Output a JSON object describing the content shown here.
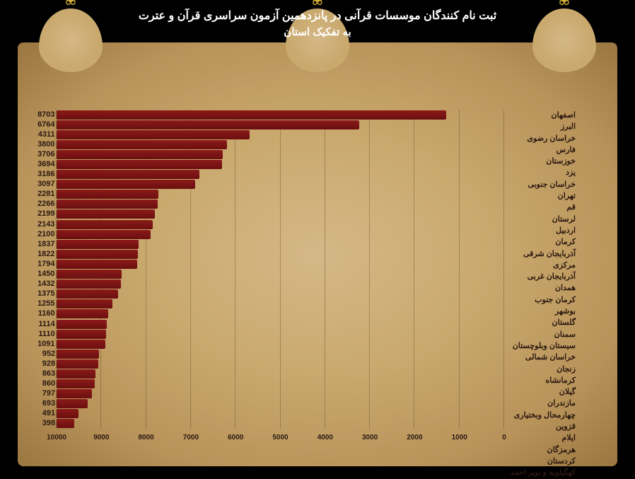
{
  "title": "ثبت نام کنندگان موسسات قرآنی در پانزدهمین آزمون سراسری قرآن و عترت",
  "subtitle": "به تفکیک استان",
  "chart": {
    "type": "bar",
    "xmax": 10000,
    "xtick_step": 1000,
    "bar_color_top": "#8b1a1a",
    "bar_color_bottom": "#6b0f0f",
    "grid_color": "rgba(90,60,30,0.35)",
    "text_color": "#2a1810",
    "background": "#c9a96e",
    "provinces": [
      {
        "name": "اصفهان",
        "value": 8703
      },
      {
        "name": "البرز",
        "value": 6764
      },
      {
        "name": "خراسان رضوی",
        "value": 4311
      },
      {
        "name": "فارس",
        "value": 3800
      },
      {
        "name": "خوزستان",
        "value": 3706
      },
      {
        "name": "یزد",
        "value": 3694
      },
      {
        "name": "خراسان جنوبی",
        "value": 3186
      },
      {
        "name": "تهران",
        "value": 3097
      },
      {
        "name": "قم",
        "value": 2281
      },
      {
        "name": "لرستان",
        "value": 2266
      },
      {
        "name": "اردبیل",
        "value": 2199
      },
      {
        "name": "کرمان",
        "value": 2143
      },
      {
        "name": "آذربایجان شرقی",
        "value": 2100
      },
      {
        "name": "مرکزی",
        "value": 1837
      },
      {
        "name": "آذربایجان غربی",
        "value": 1822
      },
      {
        "name": "همدان",
        "value": 1794
      },
      {
        "name": "کرمان جنوب",
        "value": 1450
      },
      {
        "name": "بوشهر",
        "value": 1432
      },
      {
        "name": "گلستان",
        "value": 1375
      },
      {
        "name": "سمنان",
        "value": 1255
      },
      {
        "name": "سیستان وبلوچستان",
        "value": 1160
      },
      {
        "name": "خراسان شمالی",
        "value": 1114
      },
      {
        "name": "زنجان",
        "value": 1110
      },
      {
        "name": "کرمانشاه",
        "value": 1091
      },
      {
        "name": "گیلان",
        "value": 952
      },
      {
        "name": "مازندران",
        "value": 928
      },
      {
        "name": "چهارمحال وبختیاری",
        "value": 863
      },
      {
        "name": "قزوین",
        "value": 860
      },
      {
        "name": "ایلام",
        "value": 797
      },
      {
        "name": "هرمزگان",
        "value": 693
      },
      {
        "name": "کردستان",
        "value": 491
      },
      {
        "name": "کهگیلویه و بویر احمد",
        "value": 398
      }
    ],
    "xticks": [
      0,
      1000,
      2000,
      3000,
      4000,
      5000,
      6000,
      7000,
      8000,
      9000,
      10000
    ]
  }
}
